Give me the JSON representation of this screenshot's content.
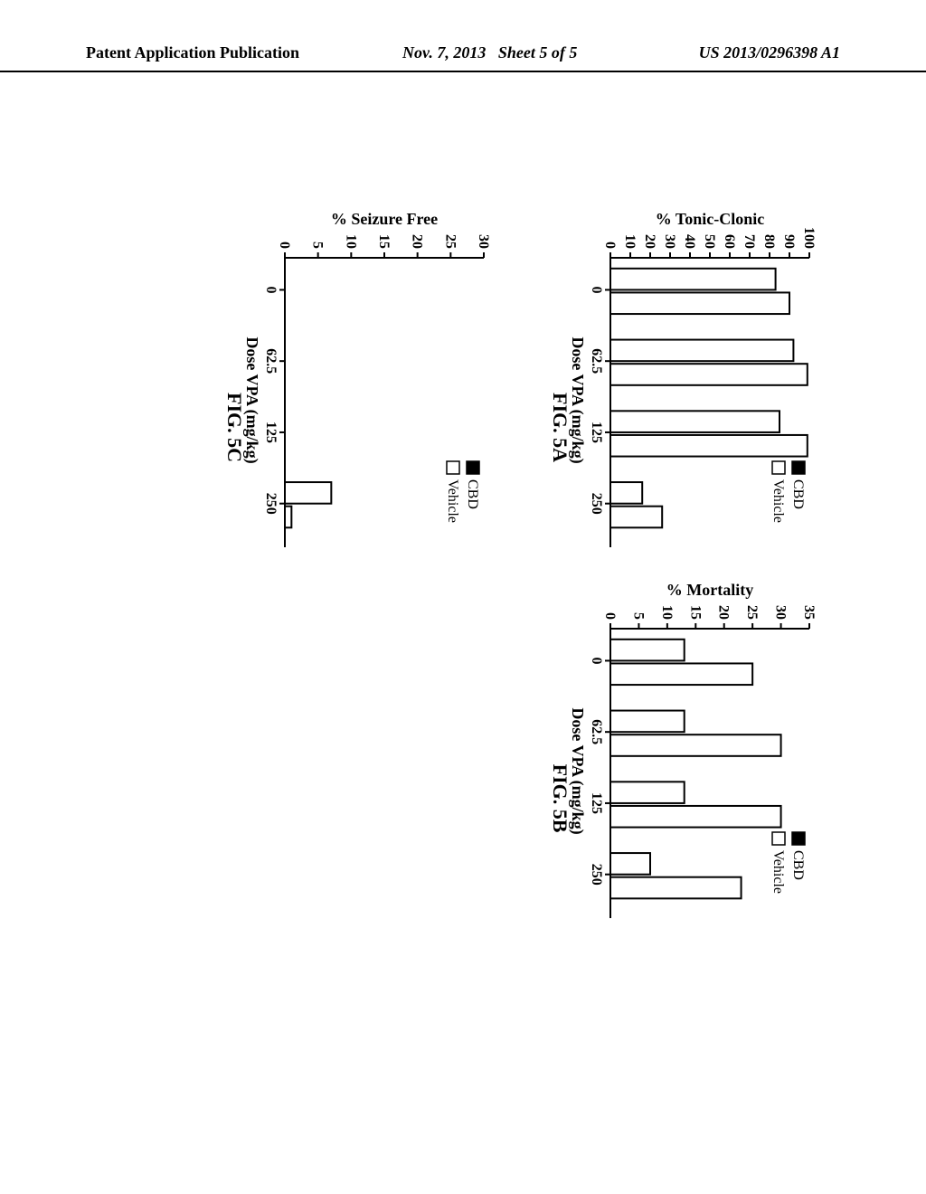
{
  "header": {
    "left": "Patent Application Publication",
    "date": "Nov. 7, 2013",
    "sheet": "Sheet 5 of 5",
    "pubno": "US 2013/0296398 A1"
  },
  "legend": {
    "series1": "CBD",
    "series2": "Vehicle"
  },
  "hatch_color": "#000000",
  "panelA": {
    "fig_label": "FIG. 5A",
    "ylabel": "% Tonic-Clonic",
    "xlabel": "Dose VPA (mg/kg)",
    "ymax": 100,
    "ytick_step": 10,
    "categories": [
      "0",
      "62.5",
      "125",
      "250"
    ],
    "cbd": [
      83,
      92,
      85,
      16
    ],
    "vehicle": [
      90,
      99,
      99,
      26
    ]
  },
  "panelB": {
    "fig_label": "FIG. 5B",
    "ylabel": "% Mortality",
    "xlabel": "Dose VPA (mg/kg)",
    "ymax": 35,
    "ytick_step": 5,
    "categories": [
      "0",
      "62.5",
      "125",
      "250"
    ],
    "cbd": [
      13,
      13,
      13,
      7
    ],
    "vehicle": [
      25,
      30,
      30,
      23
    ]
  },
  "panelC": {
    "fig_label": "FIG. 5C",
    "ylabel": "% Seizure Free",
    "xlabel": "Dose VPA (mg/kg)",
    "ymax": 30,
    "ytick_step": 5,
    "categories": [
      "0",
      "62.5",
      "125",
      "250"
    ],
    "cbd": [
      0,
      0,
      0,
      7
    ],
    "vehicle": [
      0,
      0,
      0,
      1
    ]
  }
}
